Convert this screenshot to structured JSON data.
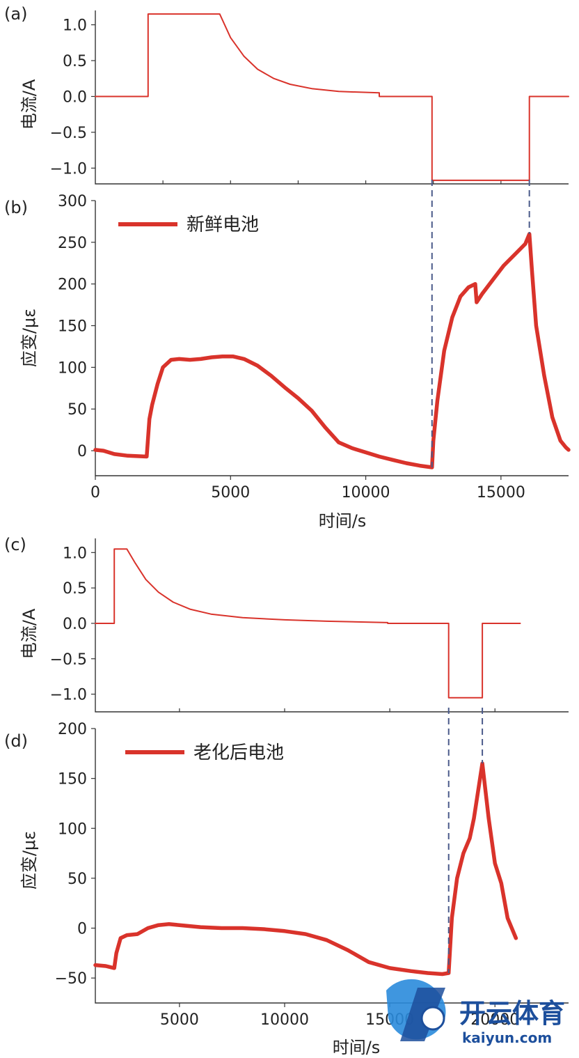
{
  "chart_data": [
    {
      "id": "a",
      "panel_label": "(a)",
      "type": "line",
      "ylabel": "电流/A",
      "xlim": [
        0,
        17500
      ],
      "ylim": [
        -1.22,
        1.2
      ],
      "yticks": [
        1.0,
        0.5,
        0.0,
        -0.5,
        -1.0
      ],
      "ytick_labels": [
        "1.0",
        "0.5",
        "0.0",
        "−0.5",
        "−1.0"
      ],
      "color": "#d9332b",
      "series": [
        {
          "x": [
            0,
            1950,
            1950,
            4600,
            5000,
            5500,
            6000,
            6600,
            7200,
            8000,
            9000,
            10500,
            10500,
            12450,
            12450,
            16050,
            16050,
            17500
          ],
          "y": [
            0,
            0,
            1.15,
            1.15,
            0.82,
            0.56,
            0.38,
            0.25,
            0.17,
            0.11,
            0.07,
            0.05,
            0,
            0,
            -1.17,
            -1.17,
            0,
            0
          ]
        }
      ]
    },
    {
      "id": "b",
      "panel_label": "(b)",
      "type": "line",
      "ylabel": "应变/με",
      "xlabel": "时间/s",
      "xlim": [
        0,
        17500
      ],
      "ylim": [
        -30,
        300
      ],
      "xticks": [
        0,
        5000,
        10000,
        15000
      ],
      "xtick_labels": [
        "0",
        "5000",
        "10000",
        "15000"
      ],
      "yticks": [
        300,
        250,
        200,
        150,
        100,
        50,
        0
      ],
      "ytick_labels": [
        "300",
        "250",
        "200",
        "150",
        "100",
        "50",
        "0"
      ],
      "color": "#d9332b",
      "series": [
        {
          "name": "新鲜电池",
          "x": [
            0,
            300,
            700,
            1200,
            1900,
            2000,
            2100,
            2300,
            2500,
            2800,
            3100,
            3500,
            3900,
            4300,
            4700,
            5100,
            5500,
            6000,
            6500,
            7000,
            7500,
            8000,
            8500,
            9000,
            9500,
            10000,
            10500,
            11000,
            11500,
            12000,
            12450,
            12500,
            12650,
            12900,
            13200,
            13500,
            13800,
            14050,
            14100,
            14300,
            14700,
            15100,
            15500,
            15900,
            16050,
            16150,
            16300,
            16600,
            16900,
            17200,
            17400,
            17500
          ],
          "y": [
            1,
            0,
            -4,
            -6,
            -7,
            38,
            55,
            80,
            100,
            109,
            110,
            109,
            110,
            112,
            113,
            113,
            110,
            102,
            90,
            76,
            63,
            48,
            28,
            10,
            3,
            -2,
            -7,
            -11,
            -15,
            -18,
            -20,
            12,
            60,
            120,
            160,
            185,
            196,
            200,
            178,
            188,
            205,
            222,
            235,
            248,
            260,
            215,
            150,
            90,
            40,
            12,
            4,
            1
          ]
        }
      ]
    },
    {
      "id": "c",
      "panel_label": "(c)",
      "type": "line",
      "ylabel": "电流/A",
      "xlim": [
        1000,
        23500
      ],
      "ylim": [
        -1.25,
        1.2
      ],
      "yticks": [
        1.0,
        0.5,
        0.0,
        -0.5,
        -1.0
      ],
      "ytick_labels": [
        "1.0",
        "0.5",
        "0.0",
        "−0.5",
        "−1.0"
      ],
      "color": "#d9332b",
      "series": [
        {
          "x": [
            1000,
            1900,
            1900,
            2500,
            2900,
            3400,
            4000,
            4700,
            5500,
            6500,
            8000,
            10000,
            12000,
            14900,
            14900,
            17800,
            17800,
            19400,
            19400,
            21200
          ],
          "y": [
            0,
            0,
            1.05,
            1.05,
            0.85,
            0.62,
            0.44,
            0.3,
            0.2,
            0.13,
            0.08,
            0.05,
            0.03,
            0.01,
            0,
            0,
            -1.05,
            -1.05,
            0,
            0
          ]
        }
      ]
    },
    {
      "id": "d",
      "panel_label": "(d)",
      "type": "line",
      "ylabel": "应变/με",
      "xlabel": "时间/s",
      "xlim": [
        1000,
        23500
      ],
      "ylim": [
        -75,
        200
      ],
      "xticks": [
        5000,
        10000,
        15000,
        20000
      ],
      "xtick_labels": [
        "5000",
        "10000",
        "15000",
        "20000"
      ],
      "yticks": [
        200,
        150,
        100,
        50,
        0,
        -50
      ],
      "ytick_labels": [
        "200",
        "150",
        "100",
        "50",
        "0",
        "−50"
      ],
      "color": "#d9332b",
      "series": [
        {
          "name": "老化后电池",
          "x": [
            1000,
            1500,
            1900,
            2000,
            2200,
            2500,
            3000,
            3500,
            4000,
            4500,
            5000,
            6000,
            7000,
            8000,
            9000,
            10000,
            11000,
            12000,
            13000,
            14000,
            15000,
            16000,
            16800,
            17500,
            17800,
            17950,
            18200,
            18500,
            18800,
            19000,
            19400,
            19700,
            20000,
            20300,
            20600,
            21000
          ],
          "y": [
            -37,
            -38,
            -40,
            -25,
            -10,
            -7,
            -6,
            0,
            3,
            4,
            3,
            1,
            0,
            0,
            -1,
            -3,
            -6,
            -12,
            -22,
            -34,
            -40,
            -43,
            -45,
            -46,
            -45,
            10,
            50,
            75,
            90,
            110,
            165,
            110,
            65,
            45,
            10,
            -10
          ]
        }
      ]
    }
  ],
  "watermark": {
    "brand": "开云体育",
    "site": "kaiyun.com"
  }
}
